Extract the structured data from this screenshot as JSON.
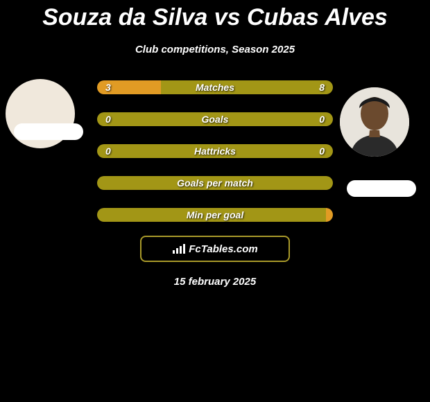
{
  "title": "Souza da Silva vs Cubas Alves",
  "subtitle": "Club competitions, Season 2025",
  "date": "15 february 2025",
  "branding": {
    "text": "FcTables.com"
  },
  "colors": {
    "left_bar": "#e19b24",
    "right_bar": "#a29616",
    "neutral_bar": "#a29616",
    "track": "#a29616",
    "background": "#000000",
    "text": "#ffffff"
  },
  "avatars": {
    "left": {
      "bg": "#ffffff"
    },
    "right": {
      "bg": "#f0e8dc"
    }
  },
  "stats": [
    {
      "label": "Matches",
      "left_value": "3",
      "right_value": "8",
      "left_pct": 27,
      "right_pct": 73,
      "left_color": "#e19b24",
      "right_color": "#a29616"
    },
    {
      "label": "Goals",
      "left_value": "0",
      "right_value": "0",
      "left_pct": 50,
      "right_pct": 50,
      "left_color": "#a29616",
      "right_color": "#a29616"
    },
    {
      "label": "Hattricks",
      "left_value": "0",
      "right_value": "0",
      "left_pct": 50,
      "right_pct": 50,
      "left_color": "#a29616",
      "right_color": "#a29616"
    },
    {
      "label": "Goals per match",
      "left_value": "",
      "right_value": "",
      "left_pct": 100,
      "right_pct": 0,
      "left_color": "#a29616",
      "right_color": "#a29616"
    },
    {
      "label": "Min per goal",
      "left_value": "",
      "right_value": "",
      "left_pct": 97,
      "right_pct": 3,
      "left_color": "#a29616",
      "right_color": "#e19b24"
    }
  ]
}
